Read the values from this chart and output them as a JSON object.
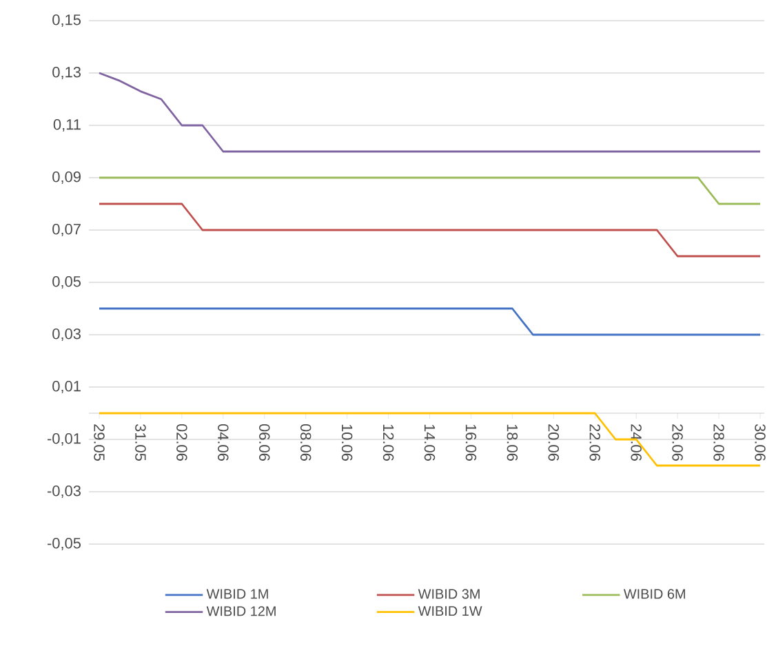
{
  "chart_data": {
    "type": "line",
    "categories": [
      "29.05",
      null,
      "31.05",
      null,
      "02.06",
      null,
      "04.06",
      null,
      "06.06",
      null,
      "08.06",
      null,
      "10.06",
      null,
      "12.06",
      null,
      "14.06",
      null,
      "16.06",
      null,
      "18.06",
      null,
      "20.06",
      null,
      "22.06",
      null,
      "24.06",
      null,
      "26.06",
      null,
      "28.06",
      null,
      "30.06"
    ],
    "series": [
      {
        "name": "WIBID 1M",
        "color": "#4472c4",
        "values": [
          0.04,
          0.04,
          0.04,
          0.04,
          0.04,
          0.04,
          0.04,
          0.04,
          0.04,
          0.04,
          0.04,
          0.04,
          0.04,
          0.04,
          0.04,
          0.04,
          0.04,
          0.04,
          0.04,
          0.04,
          0.04,
          0.03,
          0.03,
          0.03,
          0.03,
          0.03,
          0.03,
          0.03,
          0.03,
          0.03,
          0.03,
          0.03,
          0.03
        ]
      },
      {
        "name": "WIBID 3M",
        "color": "#c0504d",
        "values": [
          0.08,
          0.08,
          0.08,
          0.08,
          0.08,
          0.07,
          0.07,
          0.07,
          0.07,
          0.07,
          0.07,
          0.07,
          0.07,
          0.07,
          0.07,
          0.07,
          0.07,
          0.07,
          0.07,
          0.07,
          0.07,
          0.07,
          0.07,
          0.07,
          0.07,
          0.07,
          0.07,
          0.07,
          0.06,
          0.06,
          0.06,
          0.06,
          0.06
        ]
      },
      {
        "name": "WIBID 6M",
        "color": "#9bbb59",
        "values": [
          0.09,
          0.09,
          0.09,
          0.09,
          0.09,
          0.09,
          0.09,
          0.09,
          0.09,
          0.09,
          0.09,
          0.09,
          0.09,
          0.09,
          0.09,
          0.09,
          0.09,
          0.09,
          0.09,
          0.09,
          0.09,
          0.09,
          0.09,
          0.09,
          0.09,
          0.09,
          0.09,
          0.09,
          0.09,
          0.09,
          0.08,
          0.08,
          0.08
        ]
      },
      {
        "name": "WIBID 12M",
        "color": "#8064a2",
        "values": [
          0.13,
          0.127,
          0.123,
          0.12,
          0.11,
          0.11,
          0.1,
          0.1,
          0.1,
          0.1,
          0.1,
          0.1,
          0.1,
          0.1,
          0.1,
          0.1,
          0.1,
          0.1,
          0.1,
          0.1,
          0.1,
          0.1,
          0.1,
          0.1,
          0.1,
          0.1,
          0.1,
          0.1,
          0.1,
          0.1,
          0.1,
          0.1,
          0.1
        ]
      },
      {
        "name": "WIBID 1W",
        "color": "#ffc000",
        "values": [
          0,
          0,
          0,
          0,
          0,
          0,
          0,
          0,
          0,
          0,
          0,
          0,
          0,
          0,
          0,
          0,
          0,
          0,
          0,
          0,
          0,
          0,
          0,
          0,
          0,
          -0.01,
          -0.01,
          -0.02,
          -0.02,
          -0.02,
          -0.02,
          -0.02,
          -0.02
        ]
      }
    ],
    "ylim": [
      -0.05,
      0.15
    ],
    "yticks": [
      {
        "value": -0.05,
        "label": "-0,05"
      },
      {
        "value": -0.03,
        "label": "-0,03"
      },
      {
        "value": -0.01,
        "label": "-0,01"
      },
      {
        "value": 0.01,
        "label": "0,01"
      },
      {
        "value": 0.03,
        "label": "0,03"
      },
      {
        "value": 0.05,
        "label": "0,05"
      },
      {
        "value": 0.07,
        "label": "0,07"
      },
      {
        "value": 0.09,
        "label": "0,09"
      },
      {
        "value": 0.11,
        "label": "0,11"
      },
      {
        "value": 0.13,
        "label": "0,13"
      },
      {
        "value": 0.15,
        "label": "0,15"
      }
    ],
    "grid": "y",
    "legend": "bottom",
    "marker": "none",
    "line_style": "solid"
  }
}
